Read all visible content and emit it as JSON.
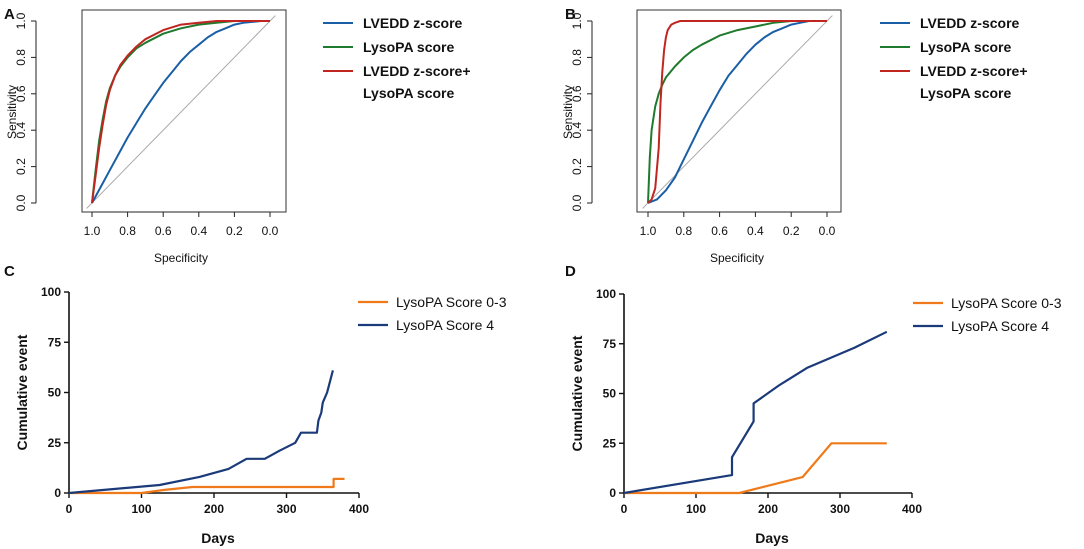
{
  "colors": {
    "lvedd": "#1a5fa6",
    "lysopa": "#1f7a2e",
    "combined": "#c0261f",
    "diagonal": "#a8a8a8",
    "score03": "#f07a1a",
    "score4": "#1b3a7a"
  },
  "chart_data": [
    {
      "panel": "A",
      "type": "line",
      "xlabel": "Specificity",
      "ylabel": "Sensitivity",
      "xlim": [
        1.0,
        0.0
      ],
      "ylim": [
        0.0,
        1.0
      ],
      "xticks": [
        "1.0",
        "0.8",
        "0.6",
        "0.4",
        "0.2",
        "0.0"
      ],
      "yticks": [
        "0.0",
        "0.2",
        "0.4",
        "0.6",
        "0.8",
        "1.0"
      ],
      "reference_line": "diagonal",
      "legend": [
        "LVEDD z-score",
        "LysoPA score",
        "LVEDD z-score+",
        "LysoPA score"
      ],
      "series": [
        {
          "name": "LVEDD z-score",
          "color_key": "lvedd",
          "x": [
            1.0,
            0.95,
            0.9,
            0.85,
            0.8,
            0.75,
            0.7,
            0.65,
            0.6,
            0.55,
            0.5,
            0.45,
            0.4,
            0.35,
            0.3,
            0.25,
            0.2,
            0.15,
            0.1,
            0.05,
            0.0
          ],
          "y": [
            0.0,
            0.09,
            0.18,
            0.27,
            0.36,
            0.44,
            0.52,
            0.59,
            0.66,
            0.72,
            0.78,
            0.83,
            0.87,
            0.91,
            0.94,
            0.96,
            0.98,
            0.99,
            0.995,
            1.0,
            1.0
          ]
        },
        {
          "name": "LysoPA score",
          "color_key": "lysopa",
          "x": [
            1.0,
            0.98,
            0.96,
            0.94,
            0.92,
            0.9,
            0.87,
            0.84,
            0.8,
            0.75,
            0.7,
            0.6,
            0.5,
            0.4,
            0.3,
            0.2,
            0.1,
            0.0
          ],
          "y": [
            0.0,
            0.18,
            0.34,
            0.46,
            0.56,
            0.63,
            0.7,
            0.75,
            0.8,
            0.85,
            0.88,
            0.93,
            0.96,
            0.98,
            0.99,
            1.0,
            1.0,
            1.0
          ]
        },
        {
          "name": "LVEDD z-score+ LysoPA score",
          "color_key": "combined",
          "x": [
            1.0,
            0.98,
            0.96,
            0.94,
            0.92,
            0.9,
            0.87,
            0.84,
            0.8,
            0.75,
            0.7,
            0.6,
            0.5,
            0.4,
            0.3,
            0.2,
            0.1,
            0.0
          ],
          "y": [
            0.0,
            0.15,
            0.3,
            0.43,
            0.54,
            0.62,
            0.7,
            0.76,
            0.81,
            0.86,
            0.9,
            0.95,
            0.98,
            0.99,
            1.0,
            1.0,
            1.0,
            1.0
          ]
        }
      ]
    },
    {
      "panel": "B",
      "type": "line",
      "xlabel": "Specificity",
      "ylabel": "Sensitivity",
      "xlim": [
        1.0,
        0.0
      ],
      "ylim": [
        0.0,
        1.0
      ],
      "xticks": [
        "1.0",
        "0.8",
        "0.6",
        "0.4",
        "0.2",
        "0.0"
      ],
      "yticks": [
        "0.0",
        "0.2",
        "0.4",
        "0.6",
        "0.8",
        "1.0"
      ],
      "reference_line": "diagonal",
      "legend": [
        "LVEDD z-score",
        "LysoPA score",
        "LVEDD z-score+",
        "LysoPA score"
      ],
      "series": [
        {
          "name": "LVEDD z-score",
          "color_key": "lvedd",
          "x": [
            1.0,
            0.95,
            0.9,
            0.85,
            0.8,
            0.75,
            0.7,
            0.65,
            0.6,
            0.55,
            0.5,
            0.45,
            0.4,
            0.35,
            0.3,
            0.25,
            0.2,
            0.15,
            0.1,
            0.05,
            0.0
          ],
          "y": [
            0.0,
            0.02,
            0.07,
            0.14,
            0.24,
            0.34,
            0.44,
            0.53,
            0.62,
            0.7,
            0.76,
            0.82,
            0.87,
            0.91,
            0.94,
            0.96,
            0.98,
            0.99,
            1.0,
            1.0,
            1.0
          ]
        },
        {
          "name": "LysoPA score",
          "color_key": "lysopa",
          "x": [
            1.0,
            0.99,
            0.98,
            0.96,
            0.94,
            0.92,
            0.9,
            0.85,
            0.8,
            0.75,
            0.7,
            0.6,
            0.5,
            0.4,
            0.3,
            0.2,
            0.1,
            0.0
          ],
          "y": [
            0.0,
            0.25,
            0.4,
            0.53,
            0.6,
            0.65,
            0.69,
            0.75,
            0.8,
            0.84,
            0.87,
            0.92,
            0.95,
            0.97,
            0.99,
            1.0,
            1.0,
            1.0
          ]
        },
        {
          "name": "LVEDD z-score+ LysoPA score",
          "color_key": "combined",
          "x": [
            1.0,
            0.98,
            0.96,
            0.94,
            0.93,
            0.92,
            0.91,
            0.9,
            0.89,
            0.87,
            0.85,
            0.82,
            0.78,
            0.7,
            0.5,
            0.3,
            0.0
          ],
          "y": [
            0.0,
            0.02,
            0.08,
            0.3,
            0.55,
            0.72,
            0.84,
            0.91,
            0.95,
            0.98,
            0.99,
            1.0,
            1.0,
            1.0,
            1.0,
            1.0,
            1.0
          ]
        }
      ]
    },
    {
      "panel": "C",
      "type": "line",
      "step": true,
      "xlabel": "Days",
      "ylabel": "Cumulative event",
      "xlim": [
        0,
        400
      ],
      "ylim": [
        0,
        100
      ],
      "xticks": [
        "0",
        "100",
        "200",
        "300",
        "400"
      ],
      "yticks": [
        "0",
        "25",
        "50",
        "75",
        "100"
      ],
      "legend": [
        "LysoPA Score 0-3",
        "LysoPA Score 4"
      ],
      "series": [
        {
          "name": "LysoPA Score 0-3",
          "color_key": "score03",
          "x": [
            0,
            100,
            130,
            170,
            365,
            365,
            380
          ],
          "y": [
            0,
            0,
            1.5,
            3,
            3,
            7,
            7
          ]
        },
        {
          "name": "LysoPA Score 4",
          "color_key": "score4",
          "x": [
            0,
            125,
            180,
            220,
            245,
            270,
            290,
            312,
            320,
            342,
            344,
            348,
            350,
            356,
            364
          ],
          "y": [
            0,
            4,
            8,
            12,
            17,
            17,
            21,
            25,
            30,
            30,
            36,
            40,
            45,
            50,
            61
          ]
        }
      ]
    },
    {
      "panel": "D",
      "type": "line",
      "step": true,
      "xlabel": "Days",
      "ylabel": "Cumulative event",
      "xlim": [
        0,
        400
      ],
      "ylim": [
        0,
        100
      ],
      "xticks": [
        "0",
        "100",
        "200",
        "300",
        "400"
      ],
      "yticks": [
        "0",
        "25",
        "50",
        "75",
        "100"
      ],
      "legend": [
        "LysoPA Score 0-3",
        "LysoPA Score 4"
      ],
      "series": [
        {
          "name": "LysoPA Score 0-3",
          "color_key": "score03",
          "x": [
            0,
            160,
            248,
            288,
            365
          ],
          "y": [
            0,
            0,
            8,
            25,
            25
          ]
        },
        {
          "name": "LysoPA Score 4",
          "color_key": "score4",
          "x": [
            0,
            150,
            150,
            180,
            180,
            215,
            255,
            320,
            365
          ],
          "y": [
            0,
            9,
            18,
            36,
            45,
            54,
            63,
            73,
            81
          ]
        }
      ]
    }
  ]
}
